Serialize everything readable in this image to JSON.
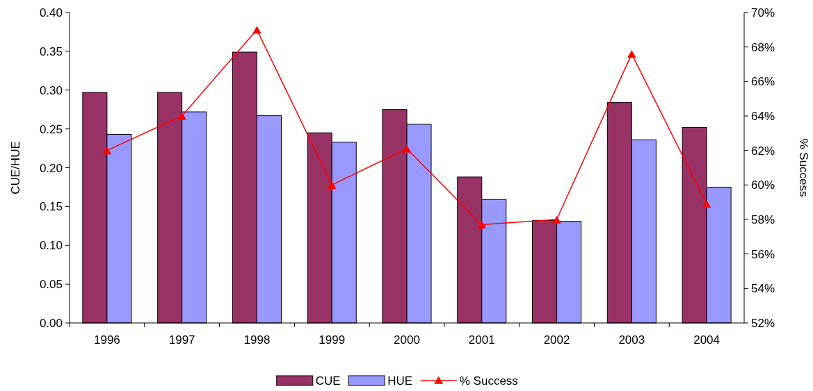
{
  "chart_data": {
    "type": "bar",
    "categories": [
      "1996",
      "1997",
      "1998",
      "1999",
      "2000",
      "2001",
      "2002",
      "2003",
      "2004"
    ],
    "ylabel": "CUE/HUE",
    "y2label": "% Success",
    "series": [
      {
        "name": "CUE",
        "color": "#993366",
        "values": [
          0.297,
          0.297,
          0.349,
          0.245,
          0.275,
          0.188,
          0.132,
          0.284,
          0.252
        ]
      },
      {
        "name": "HUE",
        "color": "#9999ff",
        "values": [
          0.243,
          0.272,
          0.267,
          0.233,
          0.256,
          0.159,
          0.131,
          0.236,
          0.175
        ]
      },
      {
        "name": "% Success",
        "type": "line",
        "axis": "y2",
        "color": "#ff0000",
        "marker": "triangle",
        "values": [
          62.0,
          64.0,
          69.0,
          60.0,
          62.1,
          57.7,
          58.0,
          67.6,
          58.9
        ]
      }
    ],
    "ylim": [
      0,
      0.4
    ],
    "yticks": [
      {
        "value": 0,
        "label": "0.00"
      },
      {
        "value": 0.05,
        "label": "0.05"
      },
      {
        "value": 0.1,
        "label": "0.10"
      },
      {
        "value": 0.15,
        "label": "0.15"
      },
      {
        "value": 0.2,
        "label": "0.20"
      },
      {
        "value": 0.25,
        "label": "0.25"
      },
      {
        "value": 0.3,
        "label": "0.30"
      },
      {
        "value": 0.35,
        "label": "0.35"
      },
      {
        "value": 0.4,
        "label": "0.40"
      }
    ],
    "y2lim": [
      52,
      70
    ],
    "y2ticks": [
      {
        "value": 52,
        "label": "52%"
      },
      {
        "value": 54,
        "label": "54%"
      },
      {
        "value": 56,
        "label": "56%"
      },
      {
        "value": 58,
        "label": "58%"
      },
      {
        "value": 60,
        "label": "60%"
      },
      {
        "value": 62,
        "label": "62%"
      },
      {
        "value": 64,
        "label": "64%"
      },
      {
        "value": 66,
        "label": "66%"
      },
      {
        "value": 68,
        "label": "68%"
      },
      {
        "value": 70,
        "label": "70%"
      }
    ],
    "legend": "bottom"
  }
}
